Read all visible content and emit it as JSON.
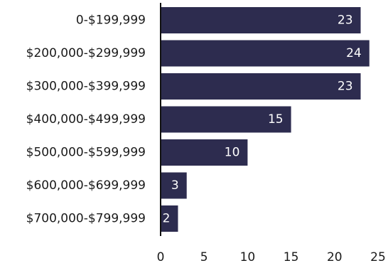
{
  "chart_data": {
    "type": "bar",
    "orientation": "horizontal",
    "categories": [
      "0-$199,999",
      "$200,000-$299,999",
      "$300,000-$399,999",
      "$400,000-$499,999",
      "$500,000-$599,999",
      "$600,000-$699,999",
      "$700,000-$799,999"
    ],
    "values": [
      23,
      24,
      23,
      15,
      10,
      3,
      2
    ],
    "data_labels": [
      "23",
      "24",
      "23",
      "15",
      "10",
      "3",
      "2"
    ],
    "x_ticks": [
      "0",
      "5",
      "10",
      "15",
      "20",
      "25"
    ],
    "xlim": [
      0,
      25
    ],
    "title": "",
    "xlabel": "",
    "ylabel": "",
    "grid": false,
    "legend": "none",
    "bar_color": "#2d2c4f",
    "axis_color": "#111111",
    "label_color": "#1a1a1a",
    "value_label_color": "#ffffff"
  }
}
